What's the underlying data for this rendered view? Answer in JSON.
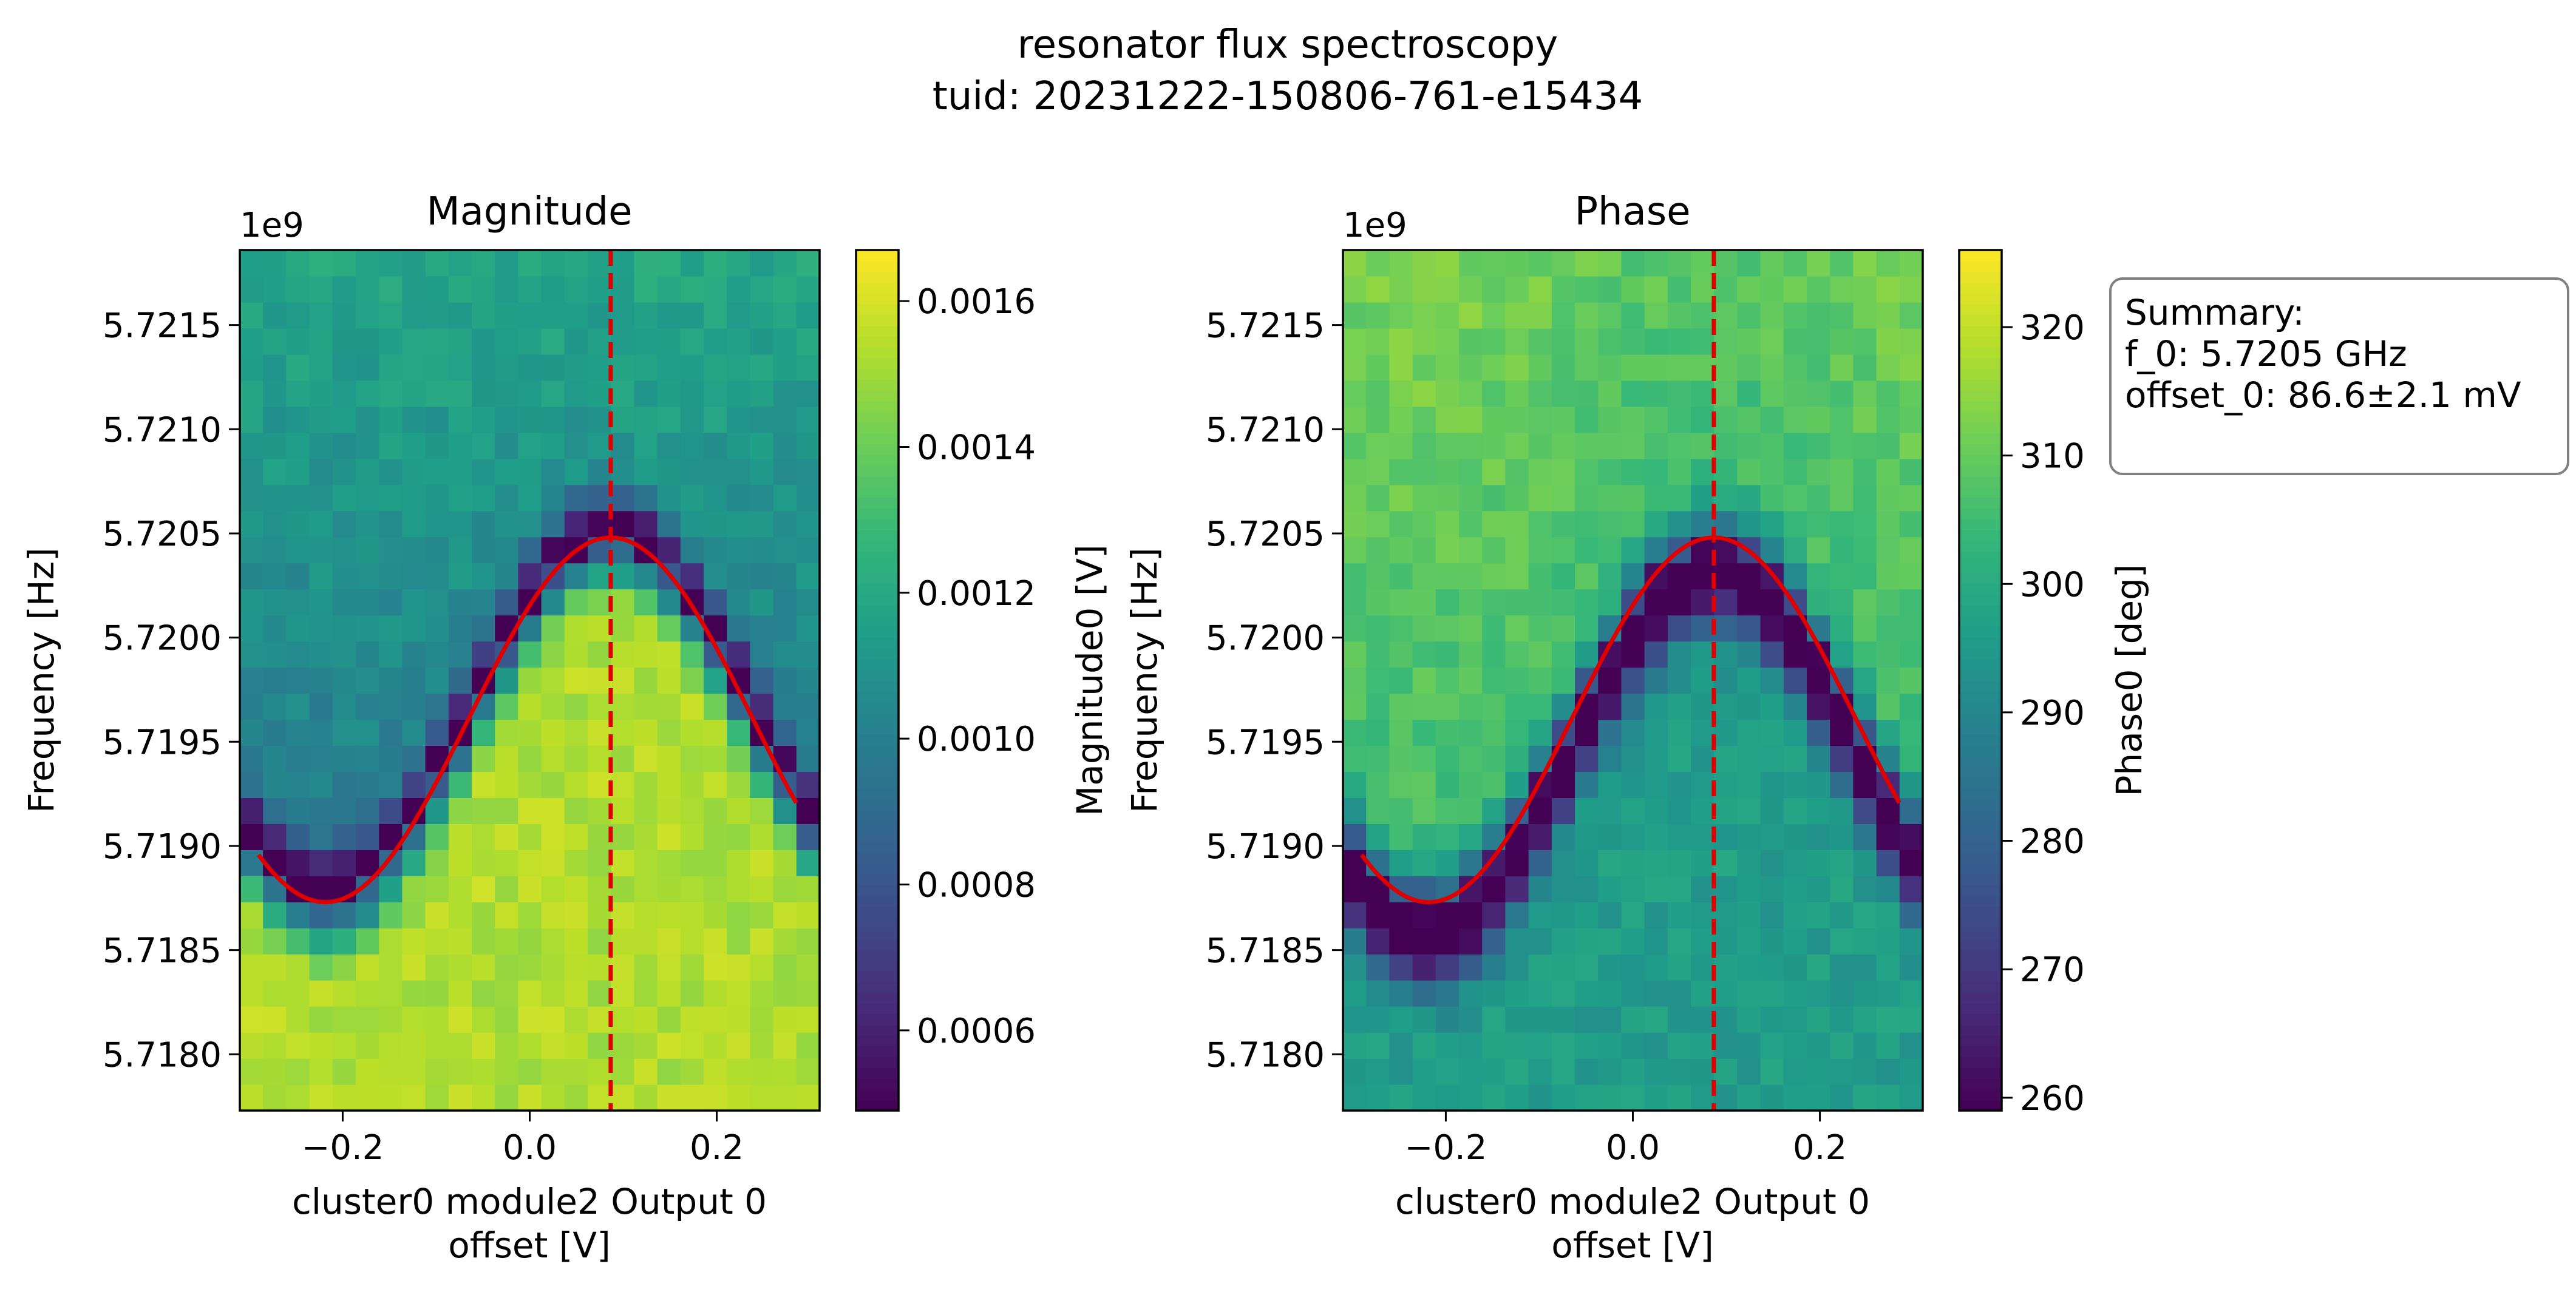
{
  "figure": {
    "title": "resonator flux spectroscopy",
    "subtitle": "tuid: 20231222-150806-761-e15434"
  },
  "summary": {
    "heading": "Summary:",
    "f0": "f_0: 5.7205 GHz",
    "offset0": "offset_0: 86.6±2.1 mV"
  },
  "colors": {
    "fit_line": "#e00000",
    "marker_line": "#e00000",
    "colormap": "viridis"
  },
  "chart_data": [
    {
      "type": "heatmap",
      "title": "Magnitude",
      "xlabel_line1": "cluster0 module2 Output 0",
      "xlabel_line2": "offset [V]",
      "ylabel": "Frequency [Hz]",
      "y_offset_label": "1e9",
      "xlim": [
        -0.31,
        0.31
      ],
      "ylim": [
        5.71773,
        5.72186
      ],
      "x_ticks": [
        -0.2,
        0.0,
        0.2
      ],
      "x_tick_labels": [
        "−0.2",
        "0.0",
        "0.2"
      ],
      "y_ticks": [
        5.718,
        5.7185,
        5.719,
        5.7195,
        5.72,
        5.7205,
        5.721,
        5.7215
      ],
      "y_tick_labels": [
        "5.7180",
        "5.7185",
        "5.7190",
        "5.7195",
        "5.7200",
        "5.7205",
        "5.7210",
        "5.7215"
      ],
      "grid": {
        "nx": 25,
        "ny": 33
      },
      "colorbar": {
        "label": "Magnitude0 [V]",
        "vmin": 0.00049,
        "vmax": 0.00167,
        "ticks": [
          0.0006,
          0.0008,
          0.001,
          0.0012,
          0.0014,
          0.0016
        ],
        "tick_labels": [
          "0.0006",
          "0.0008",
          "0.0010",
          "0.0012",
          "0.0014",
          "0.0016"
        ]
      },
      "fit": {
        "center_offset": 0.0866,
        "f_top": 5.72048,
        "f_bottom": 5.71873,
        "period": 0.61
      },
      "marker_offset": 0.0866
    },
    {
      "type": "heatmap",
      "title": "Phase",
      "xlabel_line1": "cluster0 module2 Output 0",
      "xlabel_line2": "offset [V]",
      "ylabel": "Frequency [Hz]",
      "y_offset_label": "1e9",
      "xlim": [
        -0.31,
        0.31
      ],
      "ylim": [
        5.71773,
        5.72186
      ],
      "x_ticks": [
        -0.2,
        0.0,
        0.2
      ],
      "x_tick_labels": [
        "−0.2",
        "0.0",
        "0.2"
      ],
      "y_ticks": [
        5.718,
        5.7185,
        5.719,
        5.7195,
        5.72,
        5.7205,
        5.721,
        5.7215
      ],
      "y_tick_labels": [
        "5.7180",
        "5.7185",
        "5.7190",
        "5.7195",
        "5.7200",
        "5.7205",
        "5.7210",
        "5.7215"
      ],
      "grid": {
        "nx": 25,
        "ny": 33
      },
      "colorbar": {
        "label": "Phase0 [deg]",
        "vmin": 259,
        "vmax": 326,
        "ticks": [
          260,
          270,
          280,
          290,
          300,
          310,
          320
        ],
        "tick_labels": [
          "260",
          "270",
          "280",
          "290",
          "300",
          "310",
          "320"
        ]
      },
      "fit": {
        "center_offset": 0.0866,
        "f_top": 5.72048,
        "f_bottom": 5.71873,
        "period": 0.61
      },
      "marker_offset": 0.0866
    }
  ]
}
